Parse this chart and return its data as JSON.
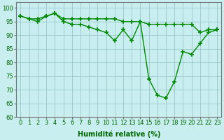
{
  "line1_x": [
    0,
    1,
    2,
    3,
    4,
    5,
    6,
    7,
    8,
    9,
    10,
    11,
    12,
    13,
    14,
    15,
    16,
    17,
    18,
    19,
    20,
    21,
    22,
    23
  ],
  "line1_y": [
    97,
    96,
    96,
    97,
    98,
    96,
    96,
    96,
    96,
    96,
    96,
    96,
    95,
    95,
    95,
    94,
    94,
    94,
    94,
    94,
    94,
    91,
    92,
    92
  ],
  "line2_x": [
    0,
    1,
    2,
    3,
    4,
    5,
    6,
    7,
    8,
    9,
    10,
    11,
    12,
    13,
    14,
    15,
    16,
    17,
    18,
    19,
    20,
    21,
    22,
    23
  ],
  "line2_y": [
    97,
    96,
    95,
    97,
    98,
    95,
    94,
    94,
    93,
    92,
    91,
    88,
    92,
    88,
    95,
    74,
    68,
    67,
    73,
    84,
    83,
    87,
    91,
    92
  ],
  "line_color": "#008800",
  "bg_color": "#c8eef0",
  "grid_color": "#90c0c0",
  "xlabel": "Humidité relative (%)",
  "ylim": [
    60,
    102
  ],
  "xlim_min": -0.5,
  "xlim_max": 23.5,
  "yticks": [
    60,
    65,
    70,
    75,
    80,
    85,
    90,
    95,
    100
  ],
  "xticks": [
    0,
    1,
    2,
    3,
    4,
    5,
    6,
    7,
    8,
    9,
    10,
    11,
    12,
    13,
    14,
    15,
    16,
    17,
    18,
    19,
    20,
    21,
    22,
    23
  ],
  "marker": "+",
  "markersize": 4,
  "linewidth": 1.0,
  "xlabel_fontsize": 7,
  "tick_fontsize": 6,
  "xlabel_color": "#006600",
  "tick_color": "#006600"
}
